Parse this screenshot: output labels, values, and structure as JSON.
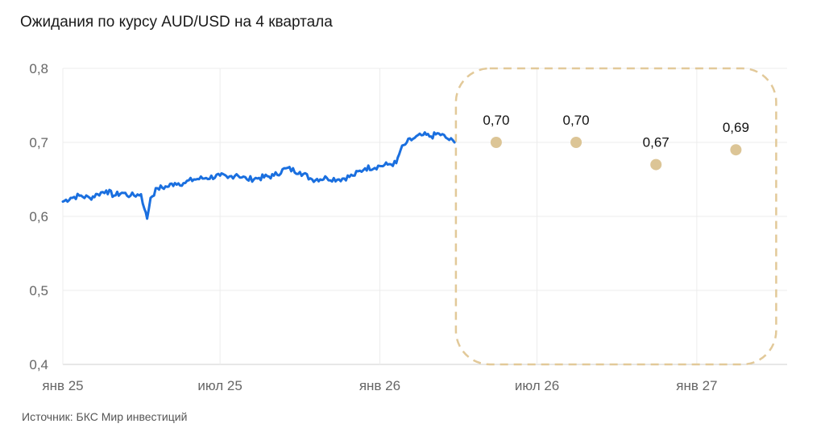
{
  "header": {
    "title": "Ожидания по курсу AUD/USD на 4 квартала"
  },
  "footer": {
    "source": "Источник: БКС Мир инвестиций"
  },
  "chart_data": {
    "type": "line",
    "title": "Ожидания по курсу AUD/USD на 4 квартала",
    "ylim": [
      0.4,
      0.8
    ],
    "yticks": [
      0.4,
      0.5,
      0.6,
      0.7,
      0.8
    ],
    "ytick_labels": [
      "0,4",
      "0,5",
      "0,6",
      "0,7",
      "0,8"
    ],
    "xlim": [
      "2025-01-01",
      "2027-04-15"
    ],
    "xticks": [
      "2025-01-01",
      "2025-07-01",
      "2026-01-01",
      "2026-07-01",
      "2027-01-01"
    ],
    "xtick_labels": [
      "янв 25",
      "июл 25",
      "янв 26",
      "июл 26",
      "янв 27"
    ],
    "grid": true,
    "colors": {
      "history": "#1a6fdf",
      "forecast": "#dcc596",
      "frame": "#e2c999"
    },
    "series": [
      {
        "values": [
          [
            "2025-01-01",
            0.62
          ],
          [
            "2025-01-10",
            0.625
          ],
          [
            "2025-01-20",
            0.628
          ],
          [
            "2025-02-01",
            0.625
          ],
          [
            "2025-02-10",
            0.63
          ],
          [
            "2025-02-20",
            0.635
          ],
          [
            "2025-03-01",
            0.628
          ],
          [
            "2025-03-10",
            0.632
          ],
          [
            "2025-03-20",
            0.628
          ],
          [
            "2025-04-01",
            0.63
          ],
          [
            "2025-04-05",
            0.61
          ],
          [
            "2025-04-08",
            0.597
          ],
          [
            "2025-04-12",
            0.625
          ],
          [
            "2025-04-20",
            0.638
          ],
          [
            "2025-05-01",
            0.64
          ],
          [
            "2025-05-10",
            0.645
          ],
          [
            "2025-05-20",
            0.645
          ],
          [
            "2025-06-01",
            0.65
          ],
          [
            "2025-06-15",
            0.652
          ],
          [
            "2025-07-01",
            0.655
          ],
          [
            "2025-07-10",
            0.652
          ],
          [
            "2025-07-20",
            0.657
          ],
          [
            "2025-08-01",
            0.65
          ],
          [
            "2025-08-15",
            0.652
          ],
          [
            "2025-09-01",
            0.655
          ],
          [
            "2025-09-15",
            0.665
          ],
          [
            "2025-10-01",
            0.66
          ],
          [
            "2025-10-15",
            0.65
          ],
          [
            "2025-11-01",
            0.652
          ],
          [
            "2025-11-15",
            0.65
          ],
          [
            "2025-12-01",
            0.655
          ],
          [
            "2025-12-15",
            0.665
          ],
          [
            "2026-01-01",
            0.668
          ],
          [
            "2026-01-10",
            0.67
          ],
          [
            "2026-01-20",
            0.672
          ],
          [
            "2026-01-25",
            0.69
          ],
          [
            "2026-02-01",
            0.7
          ],
          [
            "2026-02-10",
            0.706
          ],
          [
            "2026-02-20",
            0.71
          ],
          [
            "2026-03-01",
            0.708
          ],
          [
            "2026-03-10",
            0.712
          ],
          [
            "2026-03-20",
            0.705
          ],
          [
            "2026-03-28",
            0.7
          ]
        ]
      },
      {
        "type": "scatter",
        "values": [
          [
            "2026-05-15",
            0.7
          ],
          [
            "2026-08-15",
            0.7
          ],
          [
            "2026-11-15",
            0.67
          ],
          [
            "2027-02-15",
            0.69
          ]
        ],
        "labels": [
          "0,70",
          "0,70",
          "0,67",
          "0,69"
        ]
      }
    ]
  }
}
